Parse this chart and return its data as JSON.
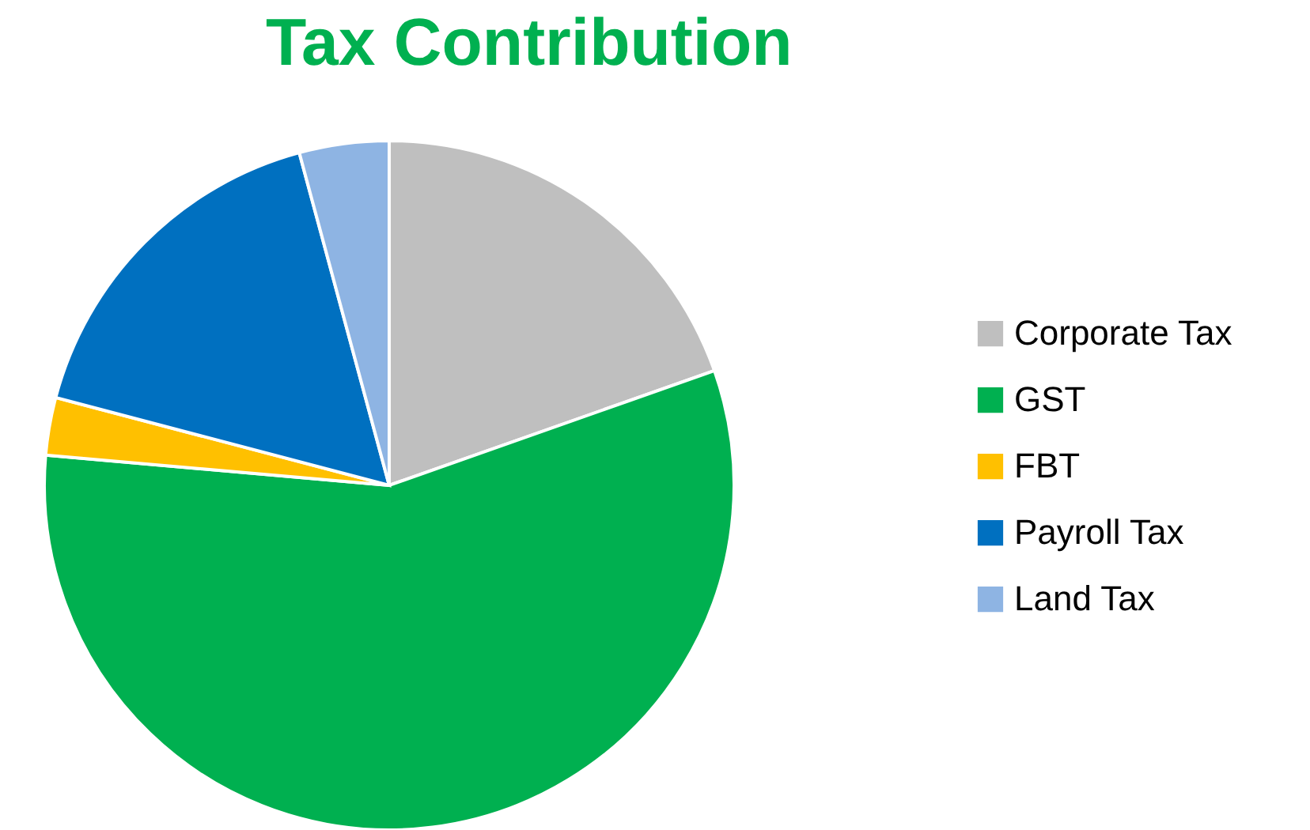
{
  "chart_data": {
    "type": "pie",
    "title": "Tax Contribution",
    "categories": [
      "Corporate Tax",
      "GST",
      "FBT",
      "Payroll Tax",
      "Land Tax"
    ],
    "values": [
      19.6,
      56.8,
      2.7,
      16.7,
      4.2
    ],
    "colors": [
      "#bfbfbf",
      "#00b050",
      "#ffc000",
      "#0070c0",
      "#8eb4e3"
    ],
    "legend": "right"
  }
}
